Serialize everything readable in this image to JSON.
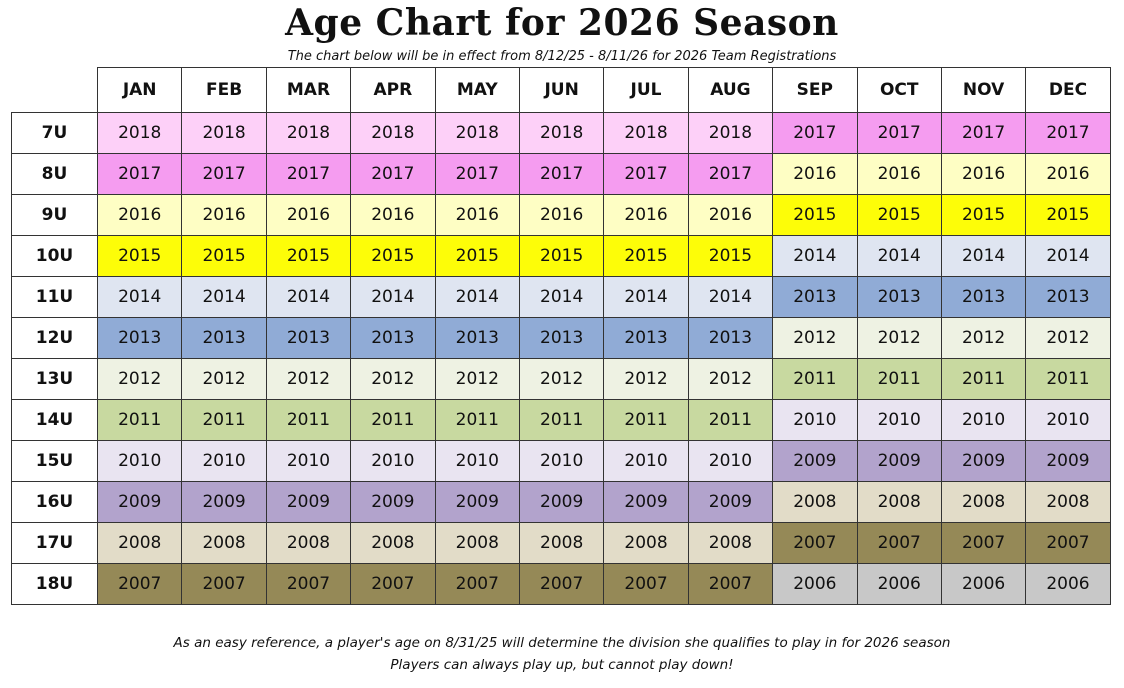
{
  "title": "Age Chart for 2026 Season",
  "subtitle": "The chart below will be in effect from 8/12/25 - 8/11/26 for 2026 Team Registrations",
  "months": [
    "JAN",
    "FEB",
    "MAR",
    "APR",
    "MAY",
    "JUN",
    "JUL",
    "AUG",
    "SEP",
    "OCT",
    "NOV",
    "DEC"
  ],
  "year_colors": {
    "2018": "#fdd0f8",
    "2017": "#f59cf0",
    "2016": "#fefec4",
    "2015": "#fdfd08",
    "2014": "#dfe5f1",
    "2013": "#90abd6",
    "2012": "#eef2e3",
    "2011": "#c8d9a0",
    "2010": "#e9e4f1",
    "2009": "#b2a3cc",
    "2008": "#e2dcc8",
    "2007": "#958957",
    "2006": "#c8c8c8"
  },
  "rows": [
    {
      "division": "7U",
      "years": [
        "2018",
        "2018",
        "2018",
        "2018",
        "2018",
        "2018",
        "2018",
        "2018",
        "2017",
        "2017",
        "2017",
        "2017"
      ]
    },
    {
      "division": "8U",
      "years": [
        "2017",
        "2017",
        "2017",
        "2017",
        "2017",
        "2017",
        "2017",
        "2017",
        "2016",
        "2016",
        "2016",
        "2016"
      ]
    },
    {
      "division": "9U",
      "years": [
        "2016",
        "2016",
        "2016",
        "2016",
        "2016",
        "2016",
        "2016",
        "2016",
        "2015",
        "2015",
        "2015",
        "2015"
      ]
    },
    {
      "division": "10U",
      "years": [
        "2015",
        "2015",
        "2015",
        "2015",
        "2015",
        "2015",
        "2015",
        "2015",
        "2014",
        "2014",
        "2014",
        "2014"
      ]
    },
    {
      "division": "11U",
      "years": [
        "2014",
        "2014",
        "2014",
        "2014",
        "2014",
        "2014",
        "2014",
        "2014",
        "2013",
        "2013",
        "2013",
        "2013"
      ]
    },
    {
      "division": "12U",
      "years": [
        "2013",
        "2013",
        "2013",
        "2013",
        "2013",
        "2013",
        "2013",
        "2013",
        "2012",
        "2012",
        "2012",
        "2012"
      ]
    },
    {
      "division": "13U",
      "years": [
        "2012",
        "2012",
        "2012",
        "2012",
        "2012",
        "2012",
        "2012",
        "2012",
        "2011",
        "2011",
        "2011",
        "2011"
      ]
    },
    {
      "division": "14U",
      "years": [
        "2011",
        "2011",
        "2011",
        "2011",
        "2011",
        "2011",
        "2011",
        "2011",
        "2010",
        "2010",
        "2010",
        "2010"
      ]
    },
    {
      "division": "15U",
      "years": [
        "2010",
        "2010",
        "2010",
        "2010",
        "2010",
        "2010",
        "2010",
        "2010",
        "2009",
        "2009",
        "2009",
        "2009"
      ]
    },
    {
      "division": "16U",
      "years": [
        "2009",
        "2009",
        "2009",
        "2009",
        "2009",
        "2009",
        "2009",
        "2009",
        "2008",
        "2008",
        "2008",
        "2008"
      ]
    },
    {
      "division": "17U",
      "years": [
        "2008",
        "2008",
        "2008",
        "2008",
        "2008",
        "2008",
        "2008",
        "2008",
        "2007",
        "2007",
        "2007",
        "2007"
      ]
    },
    {
      "division": "18U",
      "years": [
        "2007",
        "2007",
        "2007",
        "2007",
        "2007",
        "2007",
        "2007",
        "2007",
        "2006",
        "2006",
        "2006",
        "2006"
      ]
    }
  ],
  "footer_line1": "As an easy reference, a player's age on 8/31/25 will determine the division she qualifies to play in for 2026 season",
  "footer_line2": "Players can always play up, but cannot play down!"
}
